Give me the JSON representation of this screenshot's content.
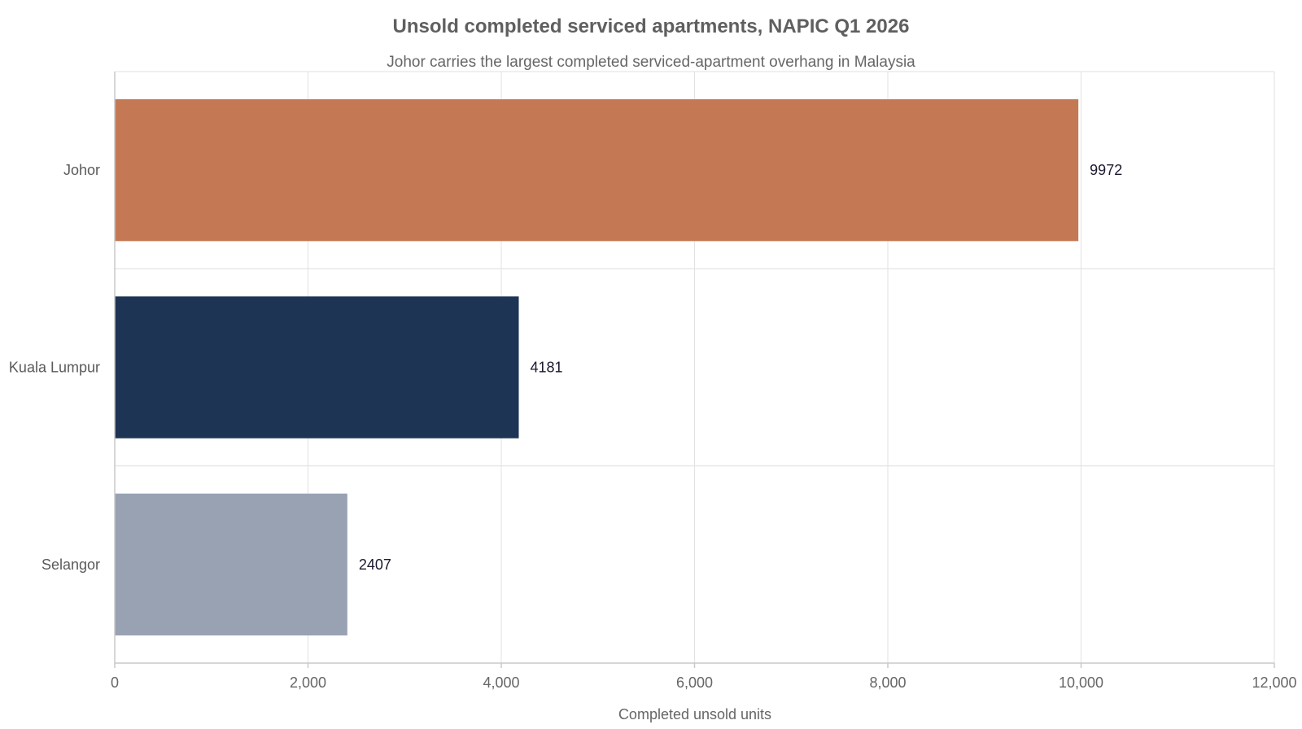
{
  "chart_data": {
    "type": "bar",
    "orientation": "horizontal",
    "title": "Unsold completed serviced apartments, NAPIC Q1 2026",
    "subtitle": "Johor carries the largest completed serviced-apartment overhang in Malaysia",
    "xlabel": "Completed unsold units",
    "ylabel": "",
    "categories": [
      "Johor",
      "Kuala Lumpur",
      "Selangor"
    ],
    "values": [
      9972,
      4181,
      2407
    ],
    "colors": [
      "#c47954",
      "#1e3455",
      "#98a2b3"
    ],
    "xlim": [
      0,
      12000
    ],
    "xticks": [
      0,
      2000,
      4000,
      6000,
      8000,
      10000,
      12000
    ],
    "xtick_labels": [
      "0",
      "2,000",
      "4,000",
      "6,000",
      "8,000",
      "10,000",
      "12,000"
    ],
    "data_labels": [
      "9972",
      "4181",
      "2407"
    ],
    "grid": true,
    "legend": false
  }
}
